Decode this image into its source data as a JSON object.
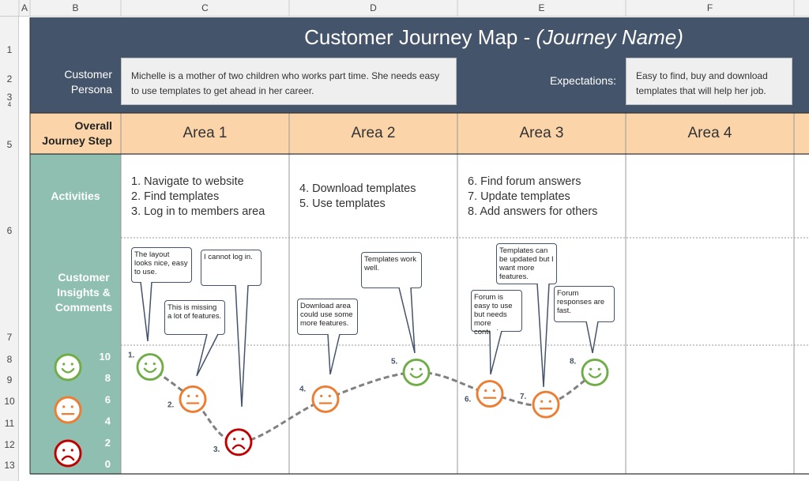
{
  "spreadsheet": {
    "columns": [
      "A",
      "B",
      "C",
      "D",
      "E",
      "F"
    ],
    "rows": [
      "1",
      "2",
      "3",
      "4",
      "5",
      "6",
      "7",
      "8",
      "9",
      "10",
      "11",
      "12",
      "13"
    ]
  },
  "header": {
    "title": "Customer Journey Map -",
    "title_italic": "(Journey Name)",
    "persona_label": "Customer Persona",
    "persona_text": "Michelle is a mother of two children who works part time. She needs easy to use templates to get ahead in her career.",
    "expectations_label": "Expectations:",
    "expectations_text": "Easy to find, buy and download templates that will help her job."
  },
  "table": {
    "step_label": "Overall Journey Step",
    "areas": [
      "Area 1",
      "Area 2",
      "Area 3",
      "Area 4"
    ],
    "activities_label": "Activities",
    "activities": [
      [
        "1. Navigate to website",
        "2. Find templates",
        "3. Log in to members area"
      ],
      [
        "4. Download templates",
        "5. Use templates"
      ],
      [
        "6. Find forum answers",
        "7. Update templates",
        "8. Add answers for others"
      ]
    ],
    "insights_label": "Customer Insights & Comments"
  },
  "journey": {
    "scale_lim": [
      0,
      10
    ],
    "scale_ticks": [
      10,
      8,
      6,
      4,
      2,
      0
    ],
    "steps": [
      {
        "label": "1.",
        "score": 9,
        "color": "#70ad47",
        "comment": "The layout looks nice, easy to use."
      },
      {
        "label": "2.",
        "score": 6,
        "color": "#ed7d31",
        "comment": "This is missing a lot of features."
      },
      {
        "label": "3.",
        "score": 2,
        "color": "#c00000",
        "comment": "I cannot log in."
      },
      {
        "label": "4.",
        "score": 6,
        "color": "#ed7d31",
        "comment": "Download area could use some more features."
      },
      {
        "label": "5.",
        "score": 8.5,
        "color": "#70ad47",
        "comment": "Templates work well."
      },
      {
        "label": "6.",
        "score": 6.5,
        "color": "#ed7d31",
        "comment": "Forum is easy to use but needs more content."
      },
      {
        "label": "7.",
        "score": 5.5,
        "color": "#ed7d31",
        "comment": "Templates can be updated but I want more features."
      },
      {
        "label": "8.",
        "score": 8.5,
        "color": "#70ad47",
        "comment": "Forum responses are fast."
      }
    ]
  }
}
